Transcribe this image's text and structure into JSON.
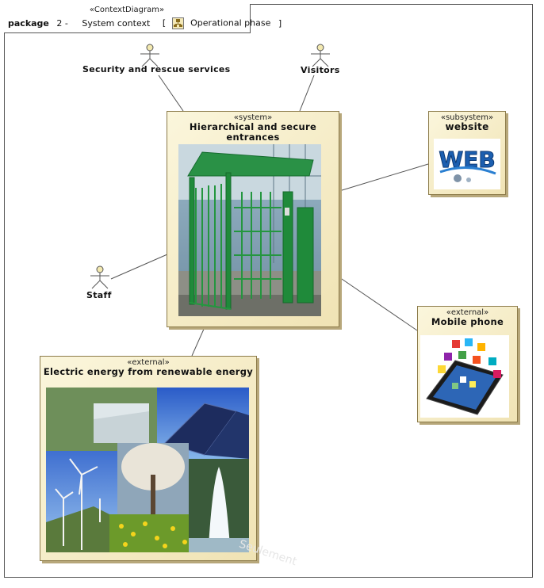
{
  "frame": {
    "stereotype": "«ContextDiagram»",
    "keyword": "package",
    "number": "2 -",
    "context": "System context",
    "bracket_open": "[",
    "phase": "Operational phase",
    "bracket_close": "]",
    "icon": "diagram-icon"
  },
  "actors": {
    "security": {
      "label": "Security and rescue services",
      "icon": "stick-figure-icon"
    },
    "visitors": {
      "label": "Visitors",
      "icon": "stick-figure-icon"
    },
    "staff": {
      "label": "Staff",
      "icon": "stick-figure-icon"
    }
  },
  "blocks": {
    "system": {
      "stereotype": "«system»",
      "name_line1": "Hierarchical and secure",
      "name_line2": "entrances",
      "image": "turnstile-gate-photo"
    },
    "website": {
      "stereotype": "«subsystem»",
      "name": "website",
      "image": "web-logo"
    },
    "mobile": {
      "stereotype": "«external»",
      "name": "Mobile phone",
      "image": "smartphone-apps-image"
    },
    "energy": {
      "stereotype": "«external»",
      "name": "Electric energy from renewable energy",
      "image": "renewable-energy-collage"
    }
  },
  "web_logo_text": "WEB",
  "watermark": "Seulement",
  "colors": {
    "block_fill": "#f4eac4",
    "block_border": "#8c7b4a",
    "gate_green": "#1f8a3a",
    "web_blue": "#1c5fb0"
  }
}
